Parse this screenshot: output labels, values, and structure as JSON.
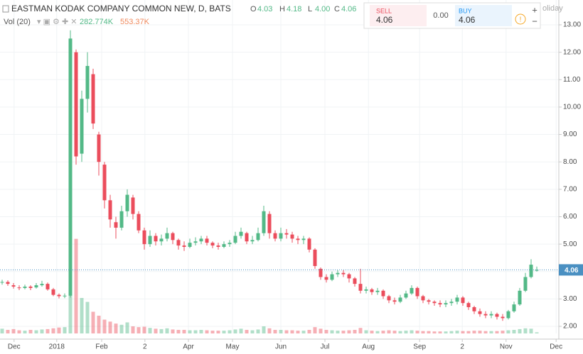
{
  "chart_data": {
    "type": "candlestick",
    "title": "EASTMAN KODAK COMPANY COMMON NEW, D, BATS",
    "ohlc_letters": [
      "O",
      "H",
      "L",
      "C"
    ],
    "ohlc_labels": [
      "4.03",
      "4.18",
      "4.00",
      "4.06"
    ],
    "volume_title": "Vol (20)",
    "volume_labels": [
      "282.774K",
      "553.37K"
    ],
    "trade": {
      "sell": "SELL",
      "sell_price": "4.06",
      "spread": "0.00",
      "buy": "BUY",
      "buy_price": "4.06",
      "note": "oliday"
    },
    "up_color": "#53b987",
    "down_color": "#eb4d5c",
    "open": [
      3.6,
      3.62,
      3.5,
      3.42,
      3.4,
      3.45,
      3.42,
      3.5,
      3.55,
      3.35,
      3.15,
      3.1,
      3.12,
      12.0,
      8.3,
      10.3,
      11.2,
      9.0,
      7.9,
      6.6,
      5.8,
      5.6,
      6.2,
      6.7,
      6.1,
      5.5,
      5.0,
      5.3,
      5.1,
      5.2,
      5.4,
      5.15,
      4.95,
      4.9,
      5.05,
      5.1,
      5.2,
      5.05,
      4.95,
      4.9,
      5.0,
      5.05,
      5.3,
      5.4,
      5.1,
      5.15,
      5.4,
      6.1,
      5.4,
      5.2,
      5.4,
      5.35,
      5.2,
      5.15,
      5.2,
      4.8,
      4.1,
      3.8,
      3.7,
      3.9,
      3.95,
      3.9,
      3.75,
      3.55,
      3.3,
      3.35,
      3.25,
      3.3,
      3.1,
      2.95,
      2.9,
      3.05,
      3.2,
      3.4,
      3.1,
      2.95,
      2.9,
      2.85,
      2.8,
      2.85,
      2.9,
      3.05,
      2.85,
      2.7,
      2.55,
      2.45,
      2.4,
      2.45,
      2.35,
      2.3,
      2.55,
      2.8,
      3.3,
      3.8,
      4.03
    ],
    "high": [
      3.7,
      3.68,
      3.58,
      3.5,
      3.52,
      3.5,
      3.58,
      3.66,
      3.6,
      3.4,
      3.2,
      3.2,
      12.8,
      12.1,
      10.6,
      12.0,
      11.4,
      9.1,
      8.0,
      6.8,
      6.0,
      6.4,
      7.0,
      6.8,
      6.2,
      5.6,
      5.5,
      5.4,
      5.35,
      5.6,
      5.45,
      5.2,
      5.1,
      5.2,
      5.25,
      5.3,
      5.3,
      5.1,
      5.05,
      5.1,
      5.15,
      5.45,
      5.6,
      5.45,
      5.3,
      5.6,
      6.4,
      6.2,
      5.5,
      5.6,
      5.55,
      5.45,
      5.3,
      5.3,
      5.25,
      4.85,
      4.15,
      3.9,
      4.0,
      4.05,
      4.05,
      3.95,
      3.8,
      4.1,
      3.45,
      3.4,
      3.4,
      3.35,
      3.15,
      3.05,
      3.15,
      3.3,
      3.5,
      3.45,
      3.15,
      3.0,
      2.95,
      2.95,
      2.95,
      3.0,
      3.15,
      3.1,
      2.9,
      2.75,
      2.65,
      2.55,
      2.55,
      2.5,
      2.45,
      2.6,
      2.9,
      3.4,
      3.95,
      4.45,
      4.18
    ],
    "low": [
      3.52,
      3.48,
      3.38,
      3.32,
      3.35,
      3.32,
      3.38,
      3.45,
      3.3,
      3.1,
      3.02,
      3.03,
      3.05,
      7.9,
      8.0,
      9.8,
      9.2,
      7.5,
      6.3,
      5.6,
      5.2,
      5.5,
      6.0,
      5.9,
      5.4,
      4.8,
      4.9,
      4.95,
      4.95,
      5.1,
      5.0,
      4.8,
      4.75,
      4.85,
      4.95,
      5.0,
      4.95,
      4.85,
      4.8,
      4.85,
      4.9,
      5.0,
      5.2,
      5.0,
      5.0,
      5.1,
      5.3,
      5.2,
      5.1,
      5.1,
      5.2,
      5.05,
      5.0,
      5.0,
      4.7,
      4.1,
      3.7,
      3.6,
      3.65,
      3.8,
      3.8,
      3.6,
      3.45,
      3.2,
      3.2,
      3.15,
      3.15,
      3.0,
      2.85,
      2.8,
      2.85,
      3.0,
      3.15,
      3.0,
      2.85,
      2.8,
      2.75,
      2.7,
      2.7,
      2.75,
      2.8,
      2.75,
      2.6,
      2.45,
      2.35,
      2.3,
      2.3,
      2.25,
      2.2,
      2.25,
      2.5,
      2.75,
      3.25,
      3.75,
      4.0
    ],
    "close": [
      3.62,
      3.55,
      3.45,
      3.4,
      3.45,
      3.4,
      3.5,
      3.55,
      3.35,
      3.15,
      3.1,
      3.12,
      12.5,
      8.2,
      10.3,
      11.5,
      9.4,
      8.0,
      6.6,
      5.9,
      5.6,
      6.2,
      6.8,
      6.1,
      5.5,
      5.0,
      5.3,
      5.1,
      5.2,
      5.4,
      5.15,
      4.95,
      4.9,
      5.05,
      5.1,
      5.2,
      5.05,
      4.95,
      4.9,
      5.0,
      5.05,
      5.3,
      5.45,
      5.1,
      5.15,
      5.4,
      6.2,
      5.4,
      5.2,
      5.4,
      5.35,
      5.2,
      5.15,
      5.2,
      4.8,
      4.2,
      3.8,
      3.7,
      3.9,
      3.95,
      3.9,
      3.75,
      3.55,
      3.3,
      3.35,
      3.25,
      3.3,
      3.1,
      2.95,
      2.9,
      3.05,
      3.2,
      3.4,
      3.1,
      2.95,
      2.9,
      2.85,
      2.8,
      2.85,
      2.9,
      3.05,
      2.85,
      2.7,
      2.55,
      2.45,
      2.4,
      2.45,
      2.35,
      2.3,
      2.55,
      2.8,
      3.3,
      3.8,
      4.25,
      4.06
    ],
    "volume": [
      1200000,
      900000,
      1100000,
      800000,
      700000,
      900000,
      800000,
      1000000,
      1100000,
      1300000,
      1500000,
      1600000,
      40000000,
      24000000,
      9000000,
      8000000,
      5500000,
      4500000,
      3500000,
      3000000,
      2500000,
      2200000,
      2800000,
      1800000,
      1600000,
      1700000,
      1400000,
      1200000,
      1100000,
      1300000,
      1000000,
      900000,
      900000,
      800000,
      800000,
      900000,
      800000,
      700000,
      700000,
      700000,
      800000,
      1000000,
      1200000,
      900000,
      800000,
      1000000,
      1800000,
      1300000,
      900000,
      900000,
      800000,
      800000,
      700000,
      700000,
      900000,
      1600000,
      1200000,
      900000,
      800000,
      700000,
      700000,
      800000,
      900000,
      1400000,
      800000,
      700000,
      600000,
      700000,
      800000,
      700000,
      600000,
      700000,
      800000,
      700000,
      600000,
      600000,
      500000,
      500000,
      500000,
      600000,
      700000,
      600000,
      600000,
      700000,
      700000,
      600000,
      600000,
      600000,
      700000,
      800000,
      900000,
      1100000,
      1300000,
      1200000,
      282774
    ],
    "volume_ylim": [
      0,
      45000000
    ],
    "xlim": [
      -0.375,
      97.875
    ],
    "xticks": [
      {
        "value": 2.1,
        "label": "Dec"
      },
      {
        "value": 9.6,
        "label": "2018"
      },
      {
        "value": 17.5,
        "label": "Feb"
      },
      {
        "value": 25.1,
        "label": "2"
      },
      {
        "value": 32.75,
        "label": "Apr"
      },
      {
        "value": 40.5,
        "label": "May"
      },
      {
        "value": 49,
        "label": "Jun"
      },
      {
        "value": 56.75,
        "label": "Jul"
      },
      {
        "value": 64.4,
        "label": "Aug"
      },
      {
        "value": 73.4,
        "label": "Sep"
      },
      {
        "value": 80.9,
        "label": "2"
      },
      {
        "value": 88.6,
        "label": "Nov"
      },
      {
        "value": 97.4,
        "label": "Dec"
      }
    ],
    "ylim": [
      1.742,
      13.906
    ],
    "yticks": [
      {
        "value": 2,
        "label": "2.00"
      },
      {
        "value": 3,
        "label": "3.00"
      },
      {
        "value": 4,
        "label": "4.00"
      },
      {
        "value": 5,
        "label": "5.00"
      },
      {
        "value": 6,
        "label": "6.00"
      },
      {
        "value": 7,
        "label": "7.00"
      },
      {
        "value": 8,
        "label": "8.00"
      },
      {
        "value": 9,
        "label": "9.00"
      },
      {
        "value": 10,
        "label": "10.00"
      },
      {
        "value": 11,
        "label": "11.00"
      },
      {
        "value": 12,
        "label": "12.00"
      },
      {
        "value": 13,
        "label": "13.00"
      }
    ],
    "last_price": {
      "value": 4.06,
      "label": "4.06"
    },
    "grid": true
  }
}
